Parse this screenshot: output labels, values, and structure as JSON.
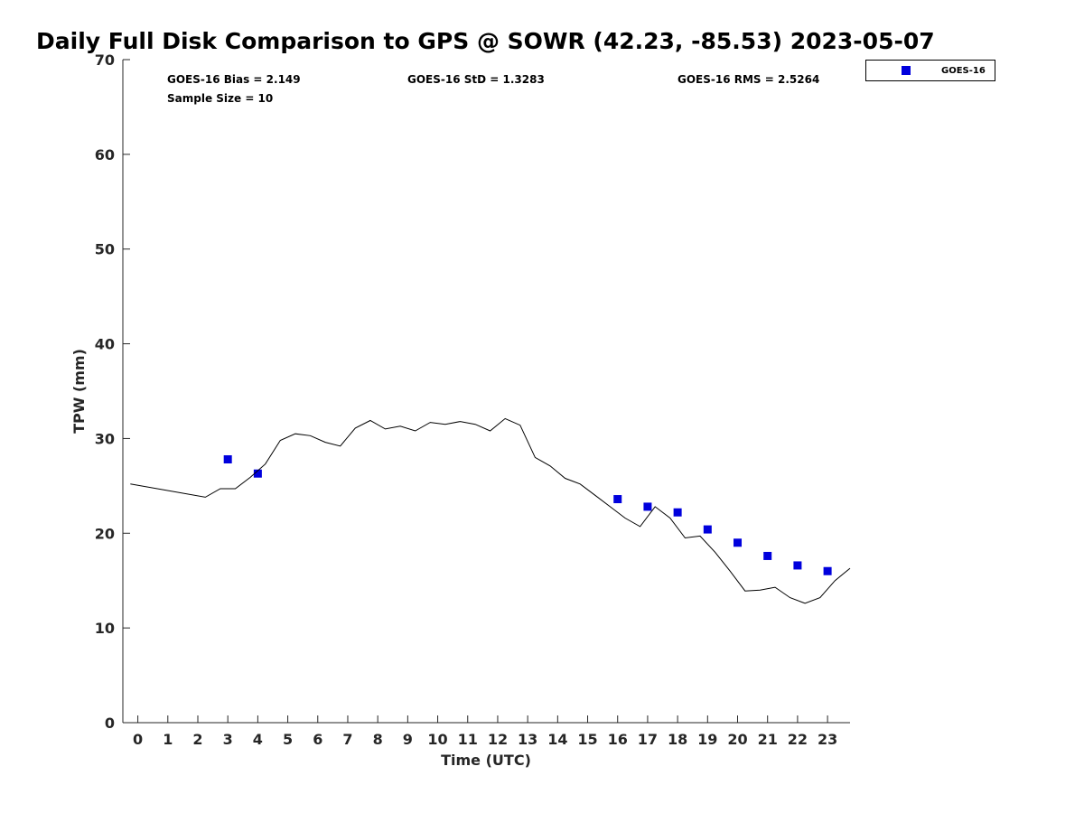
{
  "chart_data": {
    "type": "scatter",
    "title": "Daily Full Disk Comparison to GPS @ SOWR (42.23, -85.53) 2023-05-07",
    "xlabel": "Time (UTC)",
    "ylabel": "TPW (mm)",
    "xlim": [
      -0.5,
      23.75
    ],
    "ylim": [
      0,
      70
    ],
    "x_ticks": [
      0,
      1,
      2,
      3,
      4,
      5,
      6,
      7,
      8,
      9,
      10,
      11,
      12,
      13,
      14,
      15,
      16,
      17,
      18,
      19,
      20,
      21,
      22,
      23
    ],
    "y_ticks": [
      0,
      10,
      20,
      30,
      40,
      50,
      60,
      70
    ],
    "grid": false,
    "legend_position": "outside-top-right",
    "series": [
      {
        "name": "GOES-16",
        "kind": "scatter",
        "marker": "square",
        "color": "#0000dd",
        "x": [
          3,
          4,
          16,
          17,
          18,
          19,
          20,
          21,
          22,
          23
        ],
        "y": [
          27.8,
          26.3,
          23.6,
          22.8,
          22.2,
          20.4,
          19.0,
          17.6,
          16.6,
          16.0
        ]
      },
      {
        "kind": "line",
        "color": "#000000",
        "x": [
          -0.25,
          2.25,
          2.75,
          3.25,
          3.75,
          4.25,
          4.75,
          5.25,
          5.75,
          6.25,
          6.75,
          7.25,
          7.75,
          8.25,
          8.75,
          9.25,
          9.75,
          10.25,
          10.75,
          11.25,
          11.75,
          12.25,
          12.75,
          13.25,
          13.75,
          14.25,
          14.75,
          15.25,
          15.75,
          16.25,
          16.75,
          17.25,
          17.75,
          18.25,
          18.75,
          19.25,
          19.75,
          20.25,
          20.75,
          21.25,
          21.75,
          22.25,
          22.75,
          23.25,
          23.75
        ],
        "y": [
          25.2,
          23.8,
          24.7,
          24.7,
          25.9,
          27.3,
          29.8,
          30.5,
          30.3,
          29.6,
          29.2,
          31.1,
          31.9,
          31.0,
          31.3,
          30.8,
          31.7,
          31.5,
          31.8,
          31.5,
          30.8,
          32.1,
          31.4,
          28.0,
          27.1,
          25.8,
          25.2,
          24.0,
          22.8,
          21.6,
          20.7,
          22.8,
          21.6,
          19.5,
          19.7,
          18.0,
          16.0,
          13.9,
          14.0,
          14.3,
          13.2,
          12.6,
          13.2,
          15.0,
          16.3
        ]
      }
    ],
    "annotations": [
      "GOES-16 Bias = 2.149",
      "GOES-16 StD = 1.3283",
      "GOES-16 RMS = 2.5264",
      "Sample Size = 10"
    ]
  }
}
